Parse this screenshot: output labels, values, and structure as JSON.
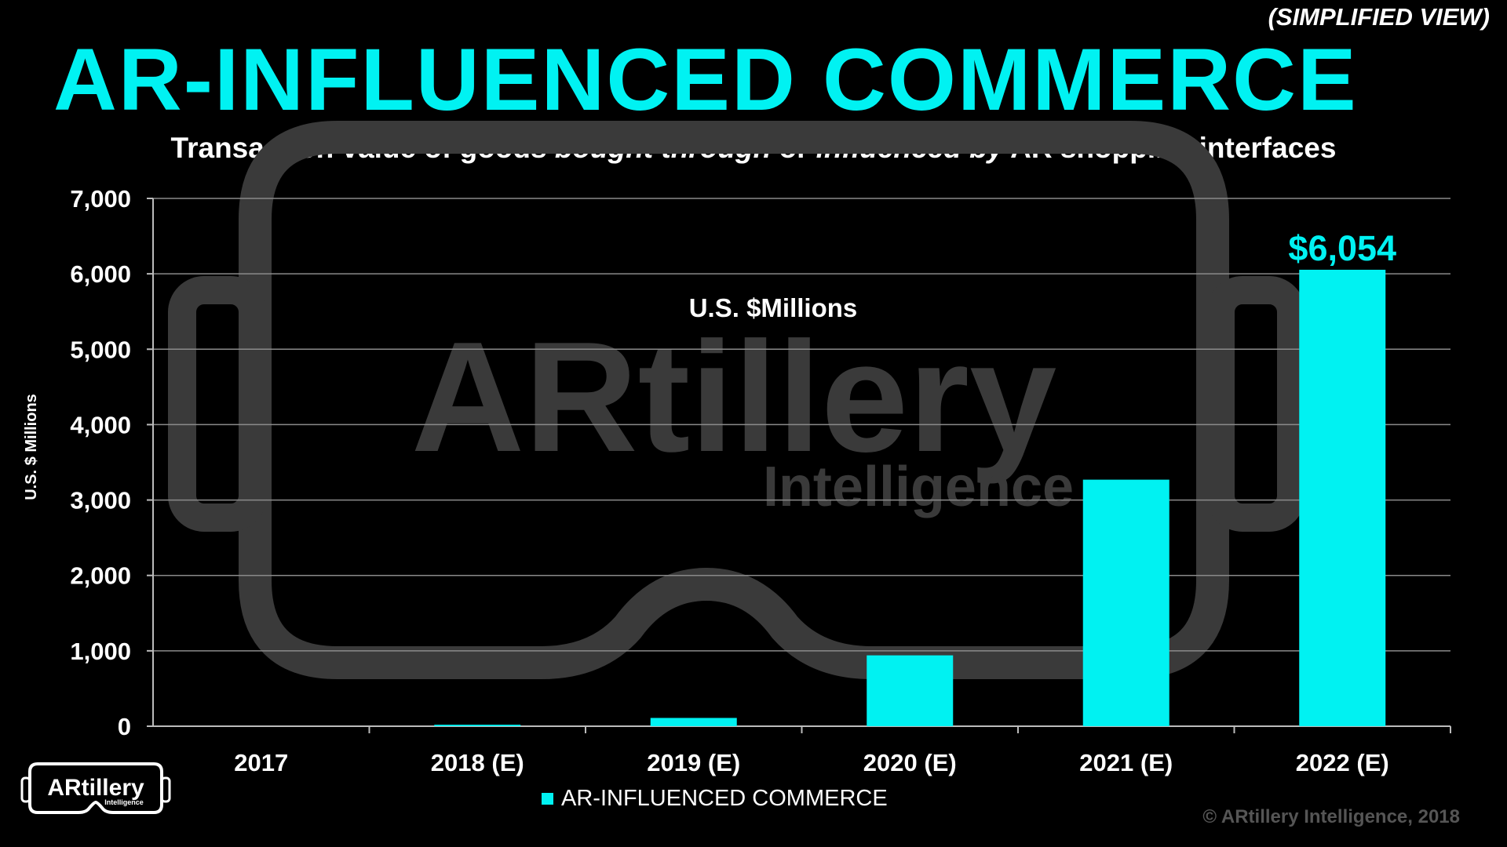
{
  "header": {
    "view_note": "(SIMPLIFIED VIEW)",
    "title": "AR-INFLUENCED COMMERCE",
    "subtitle_parts": [
      {
        "text": "Transaction value of goods ",
        "italic": false
      },
      {
        "text": "bought through",
        "italic": true
      },
      {
        "text": " or ",
        "italic": false
      },
      {
        "text": "influenced by",
        "italic": true
      },
      {
        "text": " AR shopping interfaces",
        "italic": false
      }
    ]
  },
  "watermark": {
    "brand": "ARtillery",
    "tagline": "Intelligence"
  },
  "chart_data": {
    "type": "bar",
    "categories": [
      "2017",
      "2018 (E)",
      "2019 (E)",
      "2020 (E)",
      "2021 (E)",
      "2022 (E)"
    ],
    "series": [
      {
        "name": "AR-INFLUENCED COMMERCE",
        "values": [
          0,
          20,
          110,
          940,
          3270,
          6054
        ]
      }
    ],
    "ylim": [
      0,
      7000
    ],
    "yticks": [
      0,
      1000,
      2000,
      3000,
      4000,
      5000,
      6000,
      7000
    ],
    "ytick_labels": [
      "0",
      "1,000",
      "2,000",
      "3,000",
      "4,000",
      "5,000",
      "6,000",
      "7,000"
    ],
    "ylabel": "U.S. $ Millions",
    "inner_label": "U.S. $Millions",
    "data_labels": [
      {
        "category": "2022 (E)",
        "text": "$6,054"
      }
    ],
    "grid": true,
    "legend": "bottom-center",
    "bar_color": "#00f2f2"
  },
  "logo": {
    "brand": "ARtillery",
    "tagline": "Intelligence"
  },
  "footer": {
    "copyright": "© ARtillery Intelligence, 2018"
  }
}
